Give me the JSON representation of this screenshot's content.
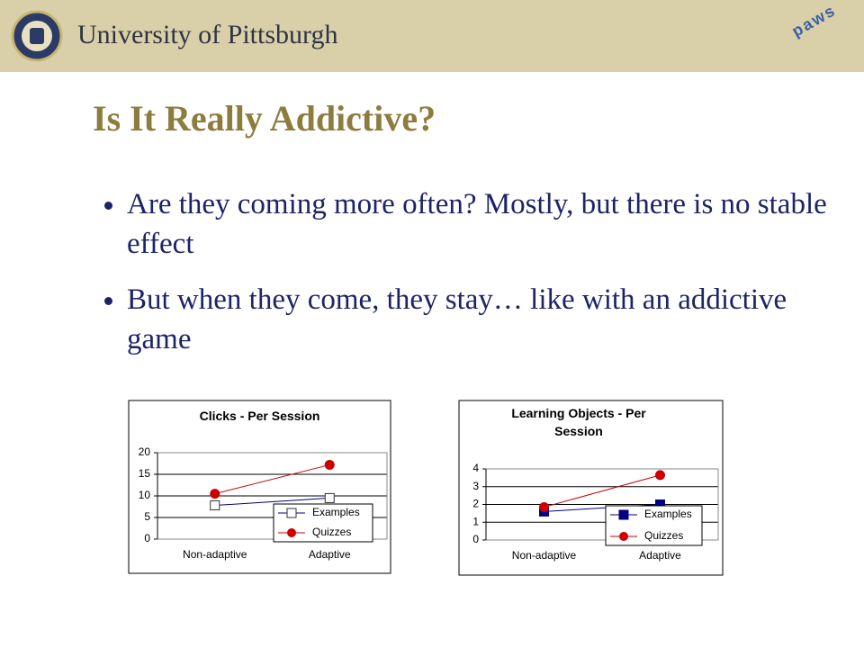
{
  "header": {
    "university": "University of Pittsburgh",
    "logo_text": "paws"
  },
  "title": "Is It Really Addictive?",
  "bullets": [
    "Are they coming more often? Mostly, but there is no stable effect",
    "But when they come, they stay… like with an addictive game"
  ],
  "chart_data": [
    {
      "type": "line",
      "title": "Clicks - Per Session",
      "categories": [
        "Non-adaptive",
        "Adaptive"
      ],
      "series": [
        {
          "name": "Examples",
          "color": "#000080",
          "marker": "square-open",
          "values": [
            7.8,
            9.5
          ]
        },
        {
          "name": "Quizzes",
          "color": "#cc0000",
          "marker": "circle",
          "values": [
            10.5,
            17.2
          ]
        }
      ],
      "ylim": [
        0,
        20
      ],
      "yticks": [
        0,
        5,
        10,
        15,
        20
      ],
      "grid": true,
      "legend": "bottom-right"
    },
    {
      "type": "line",
      "title": "Learning Objects - Per Session",
      "categories": [
        "Non-adaptive",
        "Adaptive"
      ],
      "series": [
        {
          "name": "Examples",
          "color": "#000080",
          "marker": "square",
          "values": [
            1.6,
            2.0
          ]
        },
        {
          "name": "Quizzes",
          "color": "#cc0000",
          "marker": "circle",
          "values": [
            1.85,
            3.65
          ]
        }
      ],
      "ylim": [
        0,
        4
      ],
      "yticks": [
        0,
        1,
        2,
        3,
        4
      ],
      "grid": true,
      "legend": "bottom-right"
    }
  ]
}
